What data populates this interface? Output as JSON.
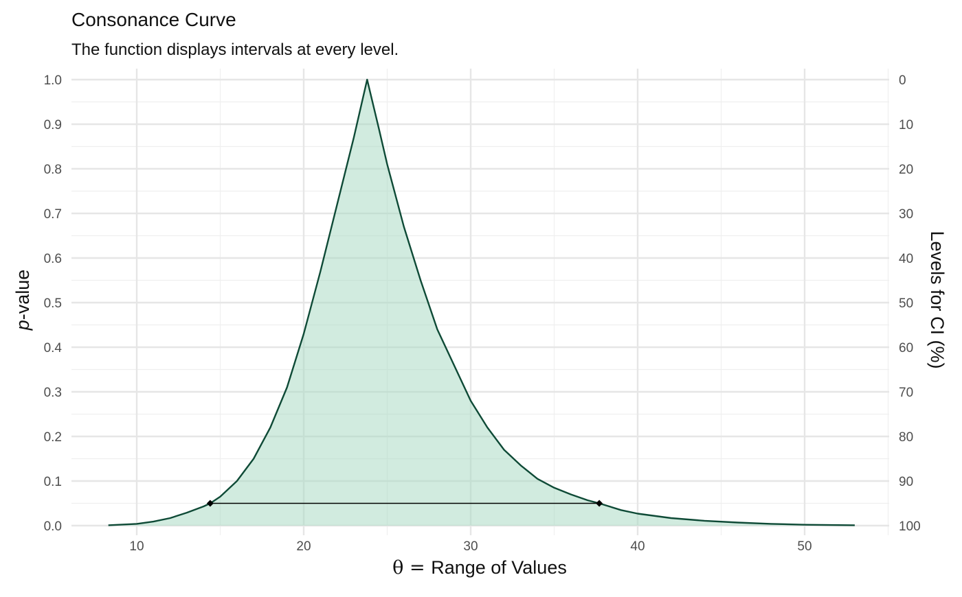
{
  "chart_data": {
    "type": "area",
    "title": "Consonance Curve",
    "subtitle": "The function displays intervals at every level.",
    "xlabel": "Range of Values",
    "xlabel_prefix": "θ = ",
    "ylabel_italic": "p",
    "ylabel_rest": "-value",
    "y2label": "Levels for CI (%)",
    "xlim": [
      6.2,
      55
    ],
    "ylim": [
      0,
      1
    ],
    "x_ticks": [
      10,
      20,
      30,
      40,
      50
    ],
    "y_ticks": [
      0.0,
      0.1,
      0.2,
      0.3,
      0.4,
      0.5,
      0.6,
      0.7,
      0.8,
      0.9,
      1.0
    ],
    "y_tick_labels": [
      "0.0",
      "0.1",
      "0.2",
      "0.3",
      "0.4",
      "0.5",
      "0.6",
      "0.7",
      "0.8",
      "0.9",
      "1.0"
    ],
    "y2_tick_labels": [
      "100",
      "90",
      "80",
      "70",
      "60",
      "50",
      "40",
      "30",
      "20",
      "10",
      "0"
    ],
    "grid": true,
    "series": [
      {
        "x": [
          8.3,
          10,
          11,
          12,
          13,
          14,
          14.4,
          15,
          16,
          17,
          18,
          19,
          20,
          21,
          22,
          23,
          23.8,
          24.5,
          25,
          26,
          27,
          28,
          29,
          30,
          31,
          32,
          33,
          34,
          35,
          36,
          37,
          37.7,
          39,
          40,
          42,
          44,
          46,
          48,
          50,
          53
        ],
        "y": [
          0.001,
          0.004,
          0.009,
          0.017,
          0.029,
          0.043,
          0.05,
          0.065,
          0.1,
          0.15,
          0.22,
          0.31,
          0.43,
          0.57,
          0.72,
          0.87,
          1.0,
          0.89,
          0.81,
          0.67,
          0.55,
          0.44,
          0.36,
          0.28,
          0.22,
          0.17,
          0.135,
          0.105,
          0.085,
          0.07,
          0.057,
          0.05,
          0.035,
          0.027,
          0.017,
          0.011,
          0.007,
          0.004,
          0.002,
          0.001
        ],
        "line_color": "#0e4a36",
        "fill_color": "#a3d7bf",
        "fill_opacity": 0.5
      }
    ],
    "interval": {
      "lower": 14.4,
      "upper": 37.7,
      "p": 0.05
    },
    "colors": {
      "line": "#0e4a36",
      "fill": "#a3d7bf",
      "interval": "#000000"
    }
  }
}
